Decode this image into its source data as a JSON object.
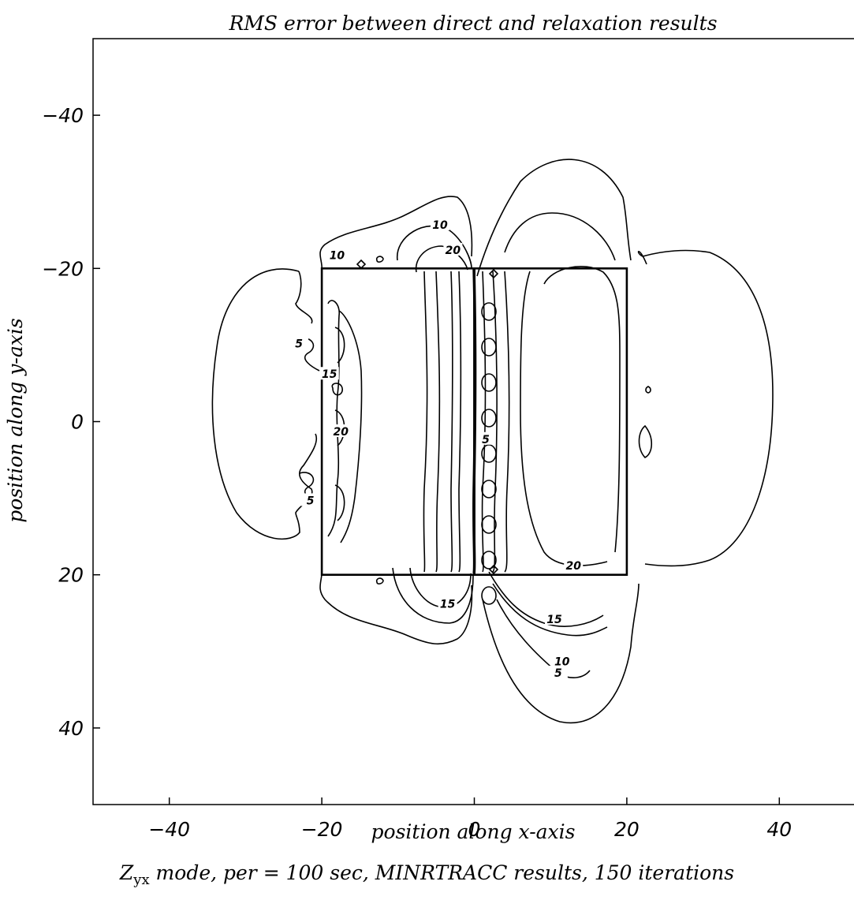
{
  "chart_data": {
    "type": "contour",
    "title": "RMS error between direct and relaxation results",
    "xlabel": "position along x-axis",
    "ylabel": "position along y-axis",
    "xlim": [
      -50,
      50
    ],
    "ylim": [
      -50,
      50
    ],
    "y_axis_inverted": true,
    "xticks": [
      -40,
      -20,
      0,
      20,
      40
    ],
    "yticks": [
      -40,
      -20,
      0,
      20,
      40
    ],
    "xtick_labels": [
      "−40",
      "−20",
      "0",
      "20",
      "40"
    ],
    "ytick_labels": [
      "−40",
      "−20",
      "0",
      "20",
      "40"
    ],
    "grid": false,
    "contour_levels": [
      5,
      10,
      15,
      20
    ],
    "blocks": [
      {
        "x": [
          -20,
          0
        ],
        "y": [
          -20,
          20
        ]
      },
      {
        "x": [
          0,
          20
        ],
        "y": [
          -20,
          20
        ]
      }
    ],
    "contour_labels": [
      {
        "text": "10",
        "x": -4.5,
        "y": -25.5
      },
      {
        "text": "20",
        "x": -2.8,
        "y": -22.2
      },
      {
        "text": "10",
        "x": -18,
        "y": -21.5
      },
      {
        "text": "5",
        "x": -23,
        "y": -10
      },
      {
        "text": "15",
        "x": -19,
        "y": -6
      },
      {
        "text": "20",
        "x": -17.5,
        "y": 1.5
      },
      {
        "text": "5",
        "x": -21.5,
        "y": 10.5
      },
      {
        "text": "5",
        "x": 1.5,
        "y": 2.5
      },
      {
        "text": "20",
        "x": 13,
        "y": 19
      },
      {
        "text": "15",
        "x": -3.5,
        "y": 24
      },
      {
        "text": "15",
        "x": 10.5,
        "y": 26
      },
      {
        "text": "10",
        "x": 11.5,
        "y": 31.5
      },
      {
        "text": "5",
        "x": 11,
        "y": 33
      }
    ]
  },
  "caption": {
    "prefix": "Z",
    "subscript": "yx",
    "text": " mode, per = 100 sec, MINRTRACC results, 150 iterations"
  }
}
